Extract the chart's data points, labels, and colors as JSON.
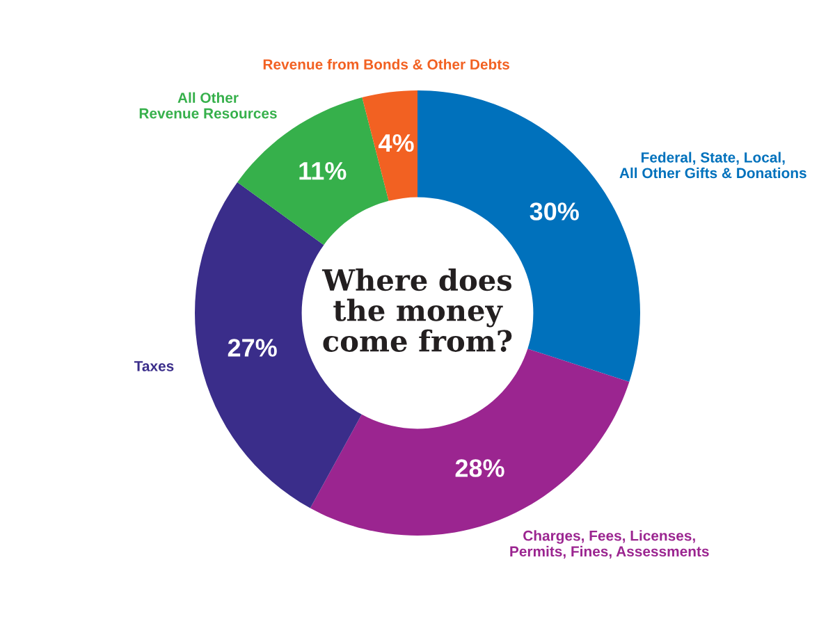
{
  "chart_data": {
    "type": "donut",
    "title": "Where does\nthe money\ncome from?",
    "categories": [
      "Federal, State, Local,\nAll Other Gifts & Donations",
      "Charges, Fees, Licenses,\nPermits, Fines, Assessments",
      "Taxes",
      "All Other\nRevenue Resources",
      "Revenue from Bonds & Other Debts"
    ],
    "values": [
      30,
      28,
      27,
      11,
      4
    ],
    "value_labels": [
      "30%",
      "28%",
      "27%",
      "11%",
      "4%"
    ],
    "colors": [
      "#0071bc",
      "#9b2590",
      "#3a2d8a",
      "#36b04b",
      "#f26122"
    ],
    "legend": false
  }
}
